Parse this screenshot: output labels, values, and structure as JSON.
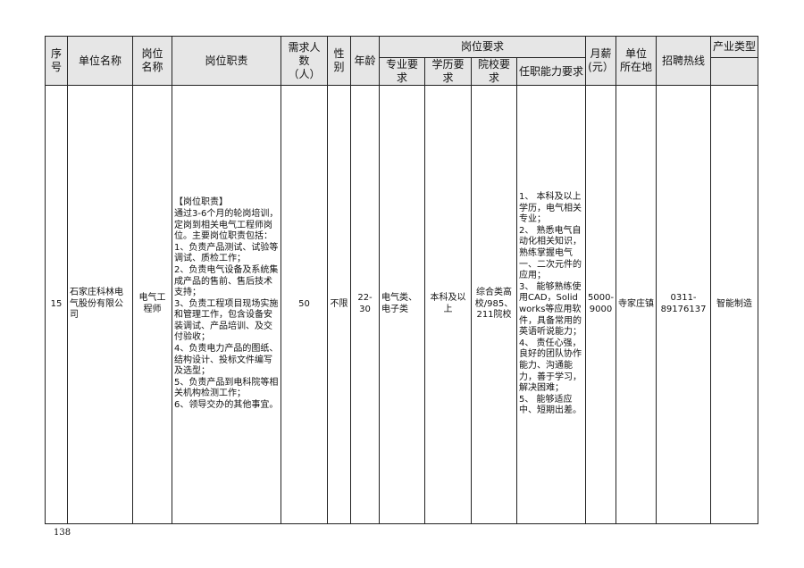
{
  "table": {
    "headers": {
      "seq": "序号",
      "company": "单位名称",
      "position": "岗位\n名称",
      "duties": "岗位职责",
      "headcount": "需求人数\n（人）",
      "gender": "性\n别",
      "age": "年龄",
      "requirements": "岗位要求",
      "major": "专业要求",
      "education": "学历要求",
      "school": "院校要求",
      "ability": "任职能力要求",
      "salary": "月薪\n(元）",
      "location": "单位\n所在地",
      "hotline": "招聘热线",
      "industry": "产业类型"
    },
    "rows": [
      {
        "seq": "15",
        "company": "石家庄科林电气股份有限公司",
        "position": "电气工程师",
        "duties": "【岗位职责】\n通过3-6个月的轮岗培训，定岗到相关电气工程师岗位。主要岗位职责包括：\n1、负责产品测试、试验等调试、质检工作；\n2、负责电气设备及系统集成产品的售前、售后技术支持；\n3、负责工程项目现场实施和管理工作，包含设备安装调试、产品培训、及交付验收；\n4、负责电力产品的图纸、结构设计、投标文件编写及选型；\n5、负责产品到电科院等相关机构检测工作；\n6、领导交办的其他事宜。",
        "headcount": "50",
        "gender": "不限",
        "age": "22-30",
        "major": "电气类、电子类",
        "education": "本科及以上",
        "school": "综合类高校/985、211院校",
        "ability": "1、 本科及以上学历，电气相关专业；\n2、 熟悉电气自动化相关知识，熟练掌握电气一、二次元件的应用；\n3、 能够熟练使用CAD，Solidworks等应用软件，具备常用的英语听说能力；\n4、 责任心强，良好的团队协作能力、沟通能力，善于学习，解决困难；\n5、 能够适应中、短期出差。",
        "salary": "5000-9000",
        "location": "寺家庄镇",
        "hotline": "0311-89176137",
        "industry": "智能制造"
      }
    ]
  },
  "page_number": "138"
}
